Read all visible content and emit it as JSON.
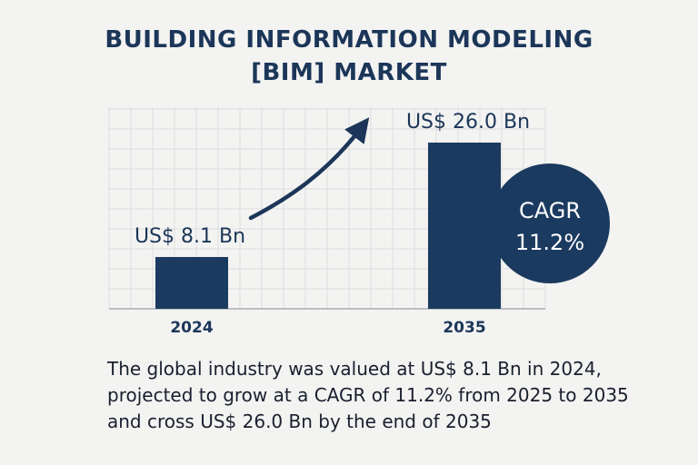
{
  "title_lines": [
    "BUILDING INFORMATION MODELING",
    "[BIM] MARKET"
  ],
  "chart_data": {
    "type": "bar",
    "categories": [
      "2024",
      "2035"
    ],
    "values": [
      8.1,
      26.0
    ],
    "value_labels": [
      "US$ 8.1 Bn",
      "US$ 26.0 Bn"
    ],
    "ylim": [
      0,
      30
    ],
    "grid": true,
    "trend_arrow": true,
    "annotation": {
      "line1": "CAGR",
      "line2": "11.2%"
    }
  },
  "description_lines": [
    "The global industry was valued at US$ 8.1 Bn in 2024,",
    "projected to grow at a CAGR of 11.2% from 2025 to 2035",
    "and cross US$ 26.0 Bn by the end of 2035"
  ],
  "colors": {
    "bar": "#1b3a5f",
    "text": "#1b3658",
    "grid": "#dedede",
    "circle": "#1b3a5f",
    "circle_text": "#ffffff"
  }
}
